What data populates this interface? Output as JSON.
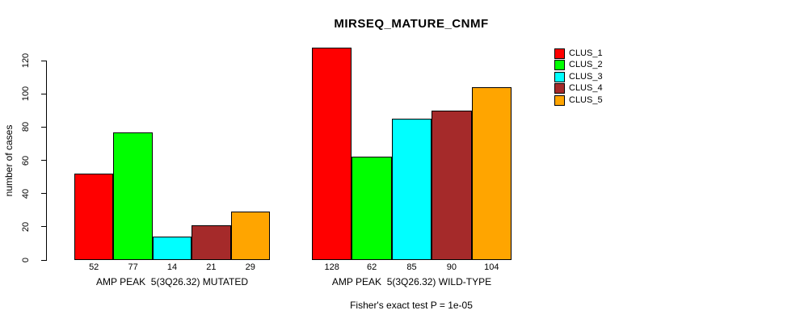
{
  "chart_data": {
    "type": "bar",
    "title": "MIRSEQ_MATURE_CNMF",
    "ylabel": "number of cases",
    "xlabel": "",
    "ylim": [
      0,
      130
    ],
    "yticks": [
      0,
      20,
      40,
      60,
      80,
      100,
      120
    ],
    "grid": false,
    "legend_position": "right-outside-top",
    "groups": [
      {
        "label": "AMP PEAK  5(3Q26.32) MUTATED",
        "values": [
          52,
          77,
          14,
          21,
          29
        ]
      },
      {
        "label": "AMP PEAK  5(3Q26.32) WILD-TYPE",
        "values": [
          128,
          62,
          85,
          90,
          104
        ]
      }
    ],
    "series": [
      {
        "name": "CLUS_1",
        "color": "#ff0000"
      },
      {
        "name": "CLUS_2",
        "color": "#00ff00"
      },
      {
        "name": "CLUS_3",
        "color": "#00ffff"
      },
      {
        "name": "CLUS_4",
        "color": "#a52a2a"
      },
      {
        "name": "CLUS_5",
        "color": "#ffa500"
      }
    ],
    "values_shown_below_bars": true,
    "caption": "Fisher's exact test P = 1e-05"
  },
  "colors": {
    "background": "#ffffff",
    "axis": "#000000",
    "text": "#000000"
  }
}
